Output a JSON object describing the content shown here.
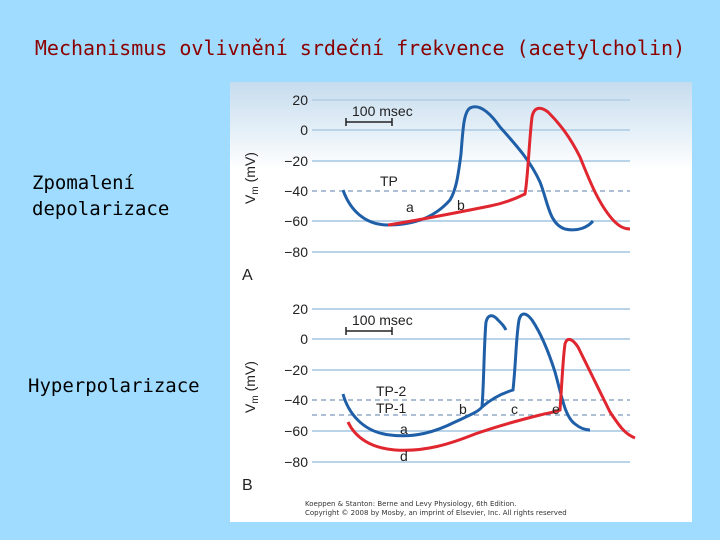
{
  "slide": {
    "title": "Mechanismus ovlivnění srdeční frekvence (acetylcholin)",
    "label_a": "Zpomalení depolarizace",
    "label_a_line1": "Zpomalení",
    "label_a_line2": "depolarizace",
    "label_b": "Hyperpolarizace"
  },
  "figure": {
    "ylabel": "Vm (mV)",
    "ylabel_main": "V",
    "ylabel_sub": "m",
    "ylabel_unit": " (mV)",
    "yticks": [
      "20",
      "0",
      "−20",
      "−40",
      "−60",
      "−80"
    ],
    "scale_bar": "100 msec",
    "panel_a": {
      "letter": "A",
      "threshold_label": "TP",
      "point_labels": [
        "a",
        "b"
      ]
    },
    "panel_b": {
      "letter": "B",
      "threshold_labels": [
        "TP-2",
        "TP-1"
      ],
      "point_labels": [
        "a",
        "b",
        "c",
        "d",
        "e"
      ]
    },
    "credit_line1": "Koeppen & Stanton: Berne and Levy Physiology, 6th Edition.",
    "credit_line2": "Copyright © 2008 by Mosby, an imprint of Elsevier, Inc. All rights reserved",
    "colors": {
      "background": "#9fdcff",
      "panel": "#ffffff",
      "blue_trace": "#1f5fa8",
      "red_trace": "#e0262f",
      "threshold_dash": "#5a7fa8",
      "title": "#8b0000"
    }
  }
}
